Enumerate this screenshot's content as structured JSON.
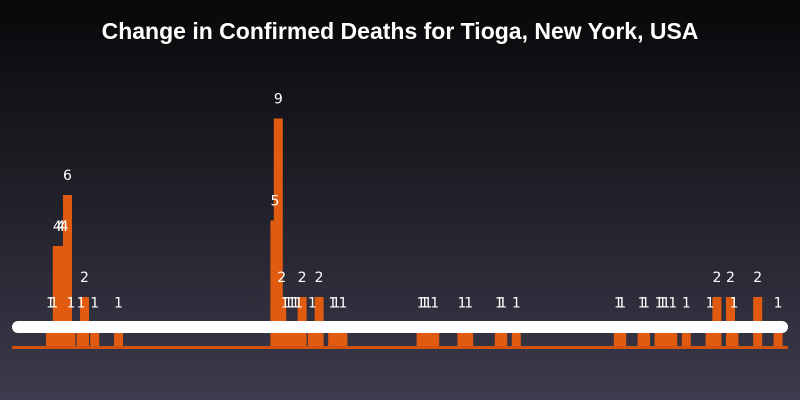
{
  "title": "Change in Confirmed Deaths for Tioga, New York, USA",
  "chart_data": {
    "type": "bar",
    "title": "Change in Confirmed Deaths for Tioga, New York, USA",
    "xlabel": "",
    "ylabel": "",
    "ylim": [
      0,
      9
    ],
    "grid": false,
    "legend": "none",
    "colors": {
      "bar": "#e05a10",
      "band": "#ffffff",
      "baseline": "#d0520c"
    },
    "x": [
      1,
      2,
      3,
      4,
      5,
      6,
      7,
      10,
      11,
      14,
      21,
      67,
      68,
      69,
      70,
      71,
      72,
      73,
      74,
      75,
      78,
      80,
      84,
      85,
      87,
      110,
      111,
      112,
      114,
      122,
      124,
      133,
      134,
      138,
      168,
      169,
      175,
      176,
      180,
      181,
      182,
      184,
      188,
      195,
      197,
      201,
      202,
      209,
      215
    ],
    "values": [
      1,
      1,
      4,
      4,
      4,
      6,
      1,
      1,
      2,
      1,
      1,
      5,
      9,
      2,
      1,
      1,
      1,
      1,
      1,
      2,
      1,
      2,
      1,
      1,
      1,
      1,
      1,
      1,
      1,
      1,
      1,
      1,
      1,
      1,
      1,
      1,
      1,
      1,
      1,
      1,
      1,
      1,
      1,
      1,
      2,
      2,
      1,
      2,
      1
    ]
  }
}
